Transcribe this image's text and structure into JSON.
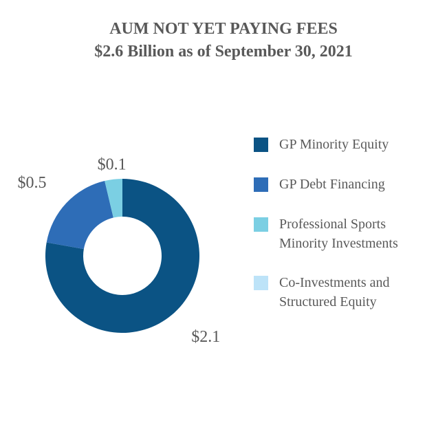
{
  "title": "AUM NOT YET PAYING FEES",
  "subtitle": "$2.6 Billion as of September 30, 2021",
  "chart_data": {
    "type": "pie",
    "variant": "donut",
    "title": "AUM NOT YET PAYING FEES",
    "subtitle": "$2.6 Billion as of September 30, 2021",
    "categories": [
      "GP Minority Equity",
      "GP Debt Financing",
      "Professional Sports Minority Investments",
      "Co-Investments and Structured Equity"
    ],
    "values": [
      2.1,
      0.5,
      0.1,
      0.0
    ],
    "data_labels": [
      "$2.1",
      "$0.5",
      "$0.1",
      ""
    ],
    "colors": [
      "#0B5384",
      "#2E6DB7",
      "#7BCFE3",
      "#BDE3F8"
    ],
    "legend_position": "right"
  },
  "legend": [
    {
      "label": "GP Minority Equity",
      "color": "#0B5384"
    },
    {
      "label": "GP Debt Financing",
      "color": "#2E6DB7"
    },
    {
      "label": "Professional Sports Minority Investments",
      "color": "#7BCFE3"
    },
    {
      "label": "Co-Investments and Structured Equity",
      "color": "#BDE3F8"
    }
  ],
  "legend_lines": [
    [
      "GP Minority Equity"
    ],
    [
      "GP Debt Financing"
    ],
    [
      "Professional Sports",
      "Minority Investments"
    ],
    [
      "Co-Investments and",
      "Structured Equity"
    ]
  ]
}
